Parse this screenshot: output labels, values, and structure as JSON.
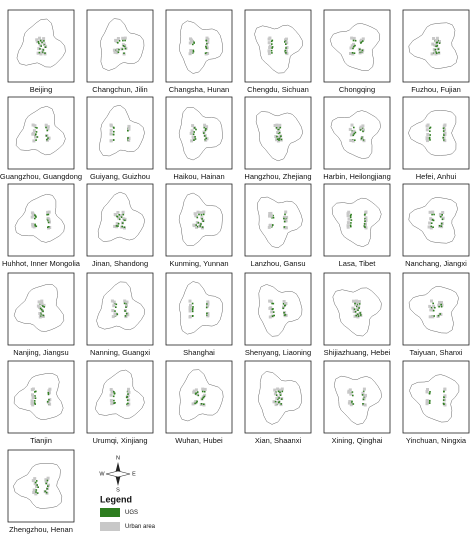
{
  "cities": [
    "Beijing",
    "Changchun, Jilin",
    "Changsha, Hunan",
    "Chengdu, Sichuan",
    "Chongqing",
    "Fuzhou, Fujian",
    "Guangzhou, Guangdong",
    "Guiyang, Guizhou",
    "Haikou, Hainan",
    "Hangzhou, Zhejiang",
    "Harbin, Heilongjiang",
    "Hefei, Anhui",
    "Huhhot,  Inner Mongolia",
    "Jinan, Shandong",
    "Kunming, Yunnan",
    "Lanzhou, Gansu",
    "Lasa, Tibet",
    "Nanchang, Jiangxi",
    "Nanjing, Jiangsu",
    "Nanning, Guangxi",
    "Shanghai",
    "Shenyang, Liaoning",
    "Shijiazhuang, Hebei",
    "Taiyuan, Shanxi",
    "Tianjin",
    "Urumqi, Xinjiang",
    "Wuhan, Hubei",
    "Xian, Shaanxi",
    "Xining, Qinghai",
    "Yinchuan, Ningxia",
    "Zhengzhou, Henan"
  ],
  "compass": {
    "north": "N",
    "east": "E",
    "south": "S",
    "west": "W"
  },
  "legend": {
    "title": "Legend",
    "items": [
      "UGS",
      "Urban area"
    ]
  }
}
